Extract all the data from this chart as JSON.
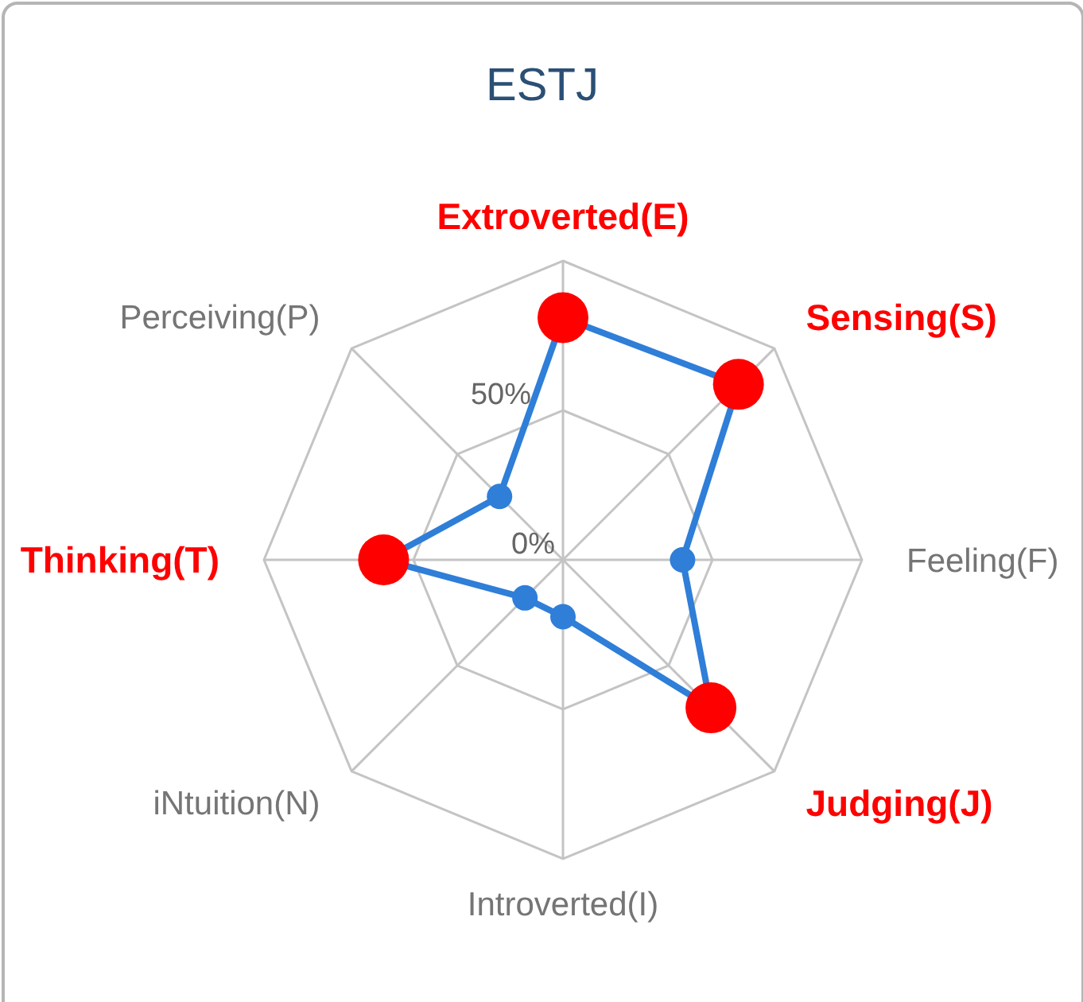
{
  "chart_data": {
    "type": "radar",
    "title": "ESTJ",
    "categories": [
      "Extroverted(E)",
      "Sensing(S)",
      "Feeling(F)",
      "Judging(J)",
      "Introverted(I)",
      "iNtuition(N)",
      "Thinking(T)",
      "Perceiving(P)"
    ],
    "series": [
      {
        "color": "#2f7ed8",
        "values": [
          81,
          83,
          40,
          70,
          19,
          18,
          60,
          30
        ],
        "colors": [
          "#ff0000",
          "#ff0000",
          "#2f7ed8",
          "#ff0000",
          "#2f7ed8",
          "#2f7ed8",
          "#ff0000",
          "#2f7ed8"
        ]
      }
    ],
    "ylim": [
      0,
      100
    ],
    "yticks": [
      {
        "value": 0,
        "label": "0%"
      },
      {
        "value": 50,
        "label": "50%"
      }
    ],
    "grid": true,
    "marker": "circle",
    "line_style": "solid"
  }
}
